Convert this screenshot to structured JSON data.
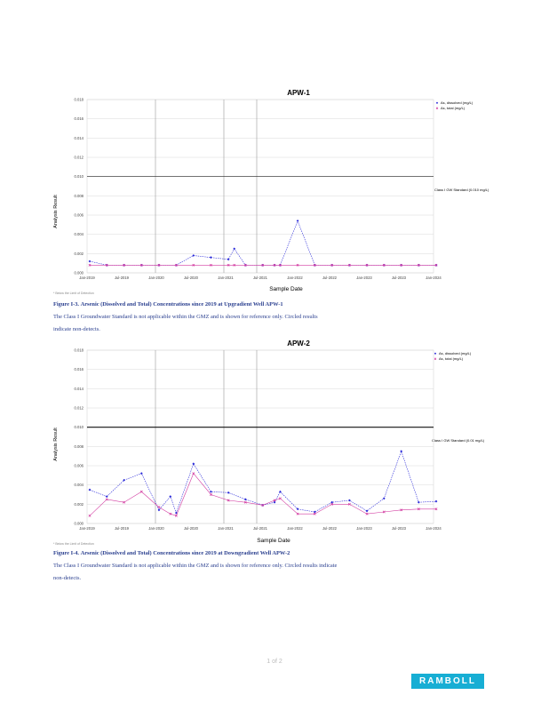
{
  "charts": [
    {
      "title": "APW-1",
      "ylabel": "Analysis Result",
      "xlabel": "Sample Date",
      "yticks": [
        "0.000",
        "0.002",
        "0.004",
        "0.006",
        "0.008",
        "0.010",
        "0.012",
        "0.014",
        "0.016",
        "0.018"
      ],
      "xticks": [
        "Jan-2019",
        "Jul-2019",
        "Jan-2020",
        "Jul-2020",
        "Jan-2021",
        "Jul-2021",
        "Jan-2022",
        "Jul-2022",
        "Jan-2023",
        "Jul-2023",
        "Jan-2024"
      ],
      "legend": [
        "As, dissolved (mg/L)",
        "As, total (mg/L)"
      ],
      "standard_label": "Class I GW Standard (0.010 mg/L)",
      "footnote": "* Below the Limit of Detection",
      "colors": {
        "dissolved": "#2b2bd9",
        "total": "#d23aa0",
        "standard": "#222222"
      }
    },
    {
      "title": "APW-2",
      "ylabel": "Analysis Result",
      "xlabel": "Sample Date",
      "yticks": [
        "0.000",
        "0.002",
        "0.004",
        "0.006",
        "0.008",
        "0.010",
        "0.012",
        "0.014",
        "0.016",
        "0.018"
      ],
      "xticks": [
        "Jan-2019",
        "Jul-2019",
        "Jan-2020",
        "Jul-2020",
        "Jan-2021",
        "Jul-2021",
        "Jan-2022",
        "Jul-2022",
        "Jan-2023",
        "Jul-2023",
        "Jan-2024"
      ],
      "legend": [
        "As, dissolved (mg/L)",
        "As, total (mg/L)"
      ],
      "standard_label": "Class I GW Standard (0.01 mg/L)",
      "footnote": "* Below the Limit of Detection",
      "colors": {
        "dissolved": "#2b2bd9",
        "total": "#d23aa0",
        "standard": "#111111"
      }
    }
  ],
  "chart_data": [
    {
      "type": "line",
      "title": "APW-1",
      "xlabel": "Sample Date",
      "ylabel": "Analysis Result",
      "ylim": [
        0.0,
        0.018
      ],
      "x": [
        "2019-01-15",
        "2019-04-15",
        "2019-07-15",
        "2019-10-15",
        "2020-01-15",
        "2020-04-15",
        "2020-07-15",
        "2020-10-15",
        "2021-01-15",
        "2021-02-15",
        "2021-04-15",
        "2021-07-15",
        "2021-09-15",
        "2021-10-15",
        "2022-01-15",
        "2022-04-15",
        "2022-07-15",
        "2022-10-15",
        "2023-01-15",
        "2023-04-15",
        "2023-07-15",
        "2023-10-15",
        "2024-01-15"
      ],
      "series": [
        {
          "name": "As, dissolved (mg/L)",
          "values": [
            0.0012,
            0.0008,
            0.0008,
            0.0008,
            0.0008,
            0.0008,
            0.0018,
            0.0016,
            0.0014,
            0.0025,
            0.0008,
            0.0008,
            0.0008,
            0.0008,
            0.0054,
            0.0008,
            0.0008,
            0.0008,
            0.0008,
            0.0008,
            0.0008,
            0.0008,
            0.0008
          ]
        },
        {
          "name": "As, total (mg/L)",
          "values": [
            0.0008,
            0.0008,
            0.0008,
            0.0008,
            0.0008,
            0.0008,
            0.0008,
            0.0008,
            0.0008,
            0.0008,
            0.0008,
            0.0008,
            0.0008,
            0.0008,
            0.0008,
            0.0008,
            0.0008,
            0.0008,
            0.0008,
            0.0008,
            0.0008,
            0.0008,
            0.0008
          ]
        }
      ],
      "reference_line": {
        "value": 0.01
      }
    },
    {
      "type": "line",
      "title": "APW-2",
      "xlabel": "Sample Date",
      "ylabel": "Analysis Result",
      "ylim": [
        0.0,
        0.018
      ],
      "x": [
        "2019-01-15",
        "2019-04-15",
        "2019-07-15",
        "2019-10-15",
        "2020-01-15",
        "2020-03-15",
        "2020-04-15",
        "2020-07-15",
        "2020-10-15",
        "2021-01-15",
        "2021-04-15",
        "2021-07-15",
        "2021-09-15",
        "2021-10-15",
        "2022-01-15",
        "2022-04-15",
        "2022-07-15",
        "2022-10-15",
        "2023-01-15",
        "2023-04-15",
        "2023-07-15",
        "2023-10-15",
        "2024-01-15"
      ],
      "series": [
        {
          "name": "As, dissolved (mg/L)",
          "values": [
            0.0035,
            0.0028,
            0.0045,
            0.0052,
            0.0014,
            0.0028,
            0.0011,
            0.0062,
            0.0033,
            0.0032,
            0.0025,
            0.0019,
            0.0022,
            0.0033,
            0.0015,
            0.0012,
            0.0022,
            0.0024,
            0.0013,
            0.0026,
            0.0075,
            0.0022,
            0.0023
          ]
        },
        {
          "name": "As, total (mg/L)",
          "values": [
            0.0008,
            0.0025,
            0.0022,
            0.0033,
            0.0017,
            0.001,
            0.0008,
            0.0052,
            0.003,
            0.0024,
            0.0022,
            0.0019,
            0.0024,
            0.0026,
            0.001,
            0.001,
            0.002,
            0.002,
            0.001,
            0.0012,
            0.0014,
            0.0015,
            0.0015
          ]
        }
      ],
      "reference_line": {
        "value": 0.01
      }
    }
  ],
  "captions": [
    {
      "label": "Figure  I-3.",
      "line1": "Arsenic (Dissolved and Total) Concentrations since 2019 at Upgradient Well APW-1",
      "line2": "The Class I Groundwater Standard is not applicable within the GMZ and is shown for reference only. Circled results",
      "line3": "indicate non-detects."
    },
    {
      "label": "Figure  I-4.",
      "line1": "Arsenic (Dissolved and Total) Concentrations since 2019 at Downgradient Well APW-2",
      "line2": "The Class I Groundwater Standard is not applicable within the GMZ and is shown for reference only. Circled results indicate",
      "line3": "non-detects."
    }
  ],
  "page": {
    "number": "1 of 2"
  },
  "logo": {
    "text": "RAMBOLL"
  }
}
